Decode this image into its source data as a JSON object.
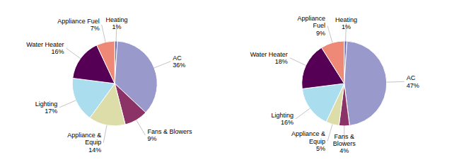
{
  "chart_data": [
    {
      "type": "pie",
      "categories": [
        "Heating",
        "AC",
        "Fans & Blowers",
        "Appliance &\nEquip",
        "Lighting",
        "Water Heater",
        "Appliance Fuel"
      ],
      "values": [
        1,
        36,
        9,
        14,
        17,
        16,
        7
      ],
      "value_labels": [
        "1%",
        "36%",
        "9%",
        "14%",
        "17%",
        "16%",
        "7%"
      ],
      "colors": [
        "#6666bb",
        "#9999cc",
        "#8b3366",
        "#ddddaa",
        "#aadeee",
        "#550055",
        "#ee8877"
      ],
      "data_labels": true
    },
    {
      "type": "pie",
      "categories": [
        "Heating",
        "AC",
        "Fans &\nBlowers",
        "Appliance &\nEquip",
        "Lighting",
        "Water Heater",
        "Appliance\nFuel"
      ],
      "values": [
        1,
        47,
        4,
        5,
        16,
        18,
        9
      ],
      "value_labels": [
        "1%",
        "47%",
        "4%",
        "5%",
        "16%",
        "18%",
        "9%"
      ],
      "colors": [
        "#6666bb",
        "#9999cc",
        "#8b3366",
        "#ddddaa",
        "#aadeee",
        "#550055",
        "#ee8877"
      ],
      "data_labels": true
    }
  ]
}
